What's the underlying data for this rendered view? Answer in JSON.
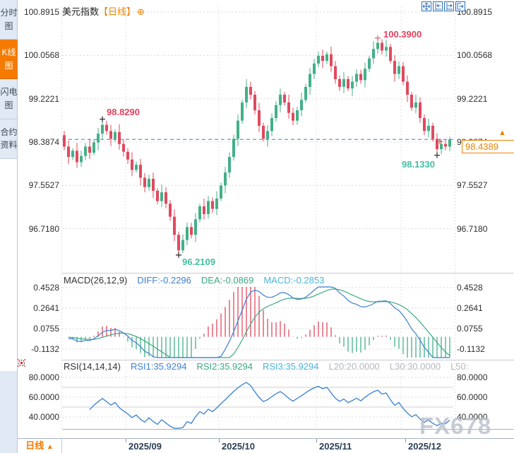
{
  "header": {
    "title": "美元指数",
    "period_tag": "【日线】",
    "add_icon": "⊕"
  },
  "sidebar": {
    "tabs": [
      {
        "label": "分时图",
        "selected": false
      },
      {
        "label": "K线图",
        "selected": true
      },
      {
        "label": "闪电图",
        "selected": false
      },
      {
        "label": "合约资料",
        "selected": false
      }
    ]
  },
  "toolbar": {
    "icons": [
      "crosshair",
      "compress-axis",
      "expand-axis",
      "pan-right"
    ]
  },
  "bottom": {
    "period_label": "日线",
    "period_arrow": "▲"
  },
  "watermark": "FX678",
  "colors": {
    "up_green": "#43b088",
    "down_red": "#e04a5e",
    "accent_orange": "#f57a00",
    "diff_blue": "#3f7fd0",
    "dea_green": "#3aa981",
    "macd_cyan": "#49b4dc",
    "dashed_blue": "#3a7bd5",
    "annotation_red": "#e0425e",
    "annotation_teal": "#44bfa2",
    "grid_gray": "#d9d9d9",
    "axis_text": "#2e2e2e",
    "watermark_gray": "#b9c0cc"
  },
  "chart_data": [
    {
      "type": "candlestick",
      "title": "美元指数 日线",
      "y_axis_labels": [
        "100.8915",
        "100.0568",
        "99.2221",
        "98.3874",
        "97.5527",
        "96.7180"
      ],
      "x_labels": [
        "2025/09",
        "2025/10",
        "2025/11",
        "2025/12"
      ],
      "month_start_indices": [
        15,
        37,
        60,
        80
      ],
      "annotations": {
        "swing_high": "98.8290",
        "peak_high": "100.3900",
        "swing_low": "96.2109",
        "recent_low": "98.1330",
        "current_price": "98.4389"
      },
      "ohlc": [
        [
          98.52,
          98.6,
          98.23,
          98.3
        ],
        [
          98.3,
          98.42,
          97.96,
          98.1
        ],
        [
          98.1,
          98.27,
          98.04,
          98.22
        ],
        [
          98.22,
          98.37,
          97.89,
          98.0
        ],
        [
          98.0,
          98.22,
          97.91,
          98.12
        ],
        [
          98.12,
          98.37,
          98.04,
          98.3
        ],
        [
          98.3,
          98.44,
          98.06,
          98.18
        ],
        [
          98.18,
          98.44,
          98.13,
          98.38
        ],
        [
          98.38,
          98.66,
          98.23,
          98.55
        ],
        [
          98.55,
          98.829,
          98.45,
          98.72
        ],
        [
          98.72,
          98.8,
          98.53,
          98.6
        ],
        [
          98.6,
          98.72,
          98.31,
          98.45
        ],
        [
          98.45,
          98.63,
          98.39,
          98.58
        ],
        [
          98.58,
          98.73,
          98.24,
          98.35
        ],
        [
          98.35,
          98.45,
          98.11,
          98.2
        ],
        [
          98.2,
          98.27,
          97.97,
          98.05
        ],
        [
          98.05,
          98.19,
          97.73,
          97.85
        ],
        [
          97.85,
          98.01,
          97.8,
          97.95
        ],
        [
          97.95,
          98.06,
          97.55,
          97.7
        ],
        [
          97.7,
          97.79,
          97.42,
          97.52
        ],
        [
          97.52,
          97.76,
          97.45,
          97.68
        ],
        [
          97.68,
          97.8,
          97.31,
          97.45
        ],
        [
          97.45,
          97.5,
          97.19,
          97.25
        ],
        [
          97.25,
          97.57,
          97.14,
          97.42
        ],
        [
          97.42,
          97.52,
          97.11,
          97.2
        ],
        [
          97.2,
          97.27,
          96.87,
          96.95
        ],
        [
          96.95,
          97.09,
          96.48,
          96.6
        ],
        [
          96.6,
          96.66,
          96.2109,
          96.3
        ],
        [
          96.3,
          96.61,
          96.25,
          96.5
        ],
        [
          96.5,
          96.84,
          96.4,
          96.75
        ],
        [
          96.75,
          96.83,
          96.53,
          96.6
        ],
        [
          96.6,
          97.02,
          96.46,
          96.9
        ],
        [
          96.9,
          97.2,
          96.84,
          97.15
        ],
        [
          97.15,
          97.3,
          96.89,
          97.0
        ],
        [
          97.0,
          97.35,
          96.91,
          97.25
        ],
        [
          97.25,
          97.32,
          97.02,
          97.1
        ],
        [
          97.1,
          97.44,
          96.98,
          97.3
        ],
        [
          97.3,
          97.61,
          97.25,
          97.55
        ],
        [
          97.55,
          97.91,
          97.4,
          97.8
        ],
        [
          97.8,
          98.19,
          97.7,
          98.1
        ],
        [
          98.1,
          98.53,
          98.03,
          98.45
        ],
        [
          98.45,
          98.92,
          98.31,
          98.8
        ],
        [
          98.8,
          99.2,
          98.74,
          99.15
        ],
        [
          99.15,
          99.6,
          99.04,
          99.45
        ],
        [
          99.45,
          99.55,
          99.21,
          99.3
        ],
        [
          99.3,
          99.37,
          98.92,
          99.0
        ],
        [
          99.0,
          99.14,
          98.58,
          98.7
        ],
        [
          98.7,
          98.76,
          98.4,
          98.45
        ],
        [
          98.45,
          98.71,
          98.3,
          98.6
        ],
        [
          98.6,
          98.94,
          98.5,
          98.85
        ],
        [
          98.85,
          99.18,
          98.78,
          99.1
        ],
        [
          99.1,
          99.42,
          98.96,
          99.3
        ],
        [
          99.3,
          99.35,
          99.09,
          99.15
        ],
        [
          99.15,
          99.3,
          98.84,
          98.95
        ],
        [
          98.95,
          99.05,
          98.71,
          98.8
        ],
        [
          98.8,
          99.07,
          98.72,
          99.0
        ],
        [
          99.0,
          99.34,
          98.88,
          99.2
        ],
        [
          99.2,
          99.51,
          99.15,
          99.45
        ],
        [
          99.45,
          99.81,
          99.3,
          99.7
        ],
        [
          99.7,
          99.99,
          99.6,
          99.9
        ],
        [
          99.9,
          100.13,
          99.83,
          100.05
        ],
        [
          100.05,
          100.17,
          99.81,
          99.95
        ],
        [
          99.95,
          100.13,
          99.89,
          100.08
        ],
        [
          100.08,
          100.23,
          99.74,
          99.85
        ],
        [
          99.85,
          99.95,
          99.51,
          99.6
        ],
        [
          99.6,
          99.67,
          99.37,
          99.45
        ],
        [
          99.45,
          99.74,
          99.33,
          99.6
        ],
        [
          99.6,
          99.66,
          99.37,
          99.42
        ],
        [
          99.42,
          99.66,
          99.27,
          99.55
        ],
        [
          99.55,
          99.79,
          99.45,
          99.7
        ],
        [
          99.7,
          99.78,
          99.51,
          99.58
        ],
        [
          99.58,
          99.92,
          99.44,
          99.8
        ],
        [
          99.8,
          100.05,
          99.74,
          100.0
        ],
        [
          100.0,
          100.33,
          99.89,
          100.18
        ],
        [
          100.18,
          100.39,
          100.09,
          100.3
        ],
        [
          100.3,
          100.37,
          100.07,
          100.15
        ],
        [
          100.15,
          100.36,
          100.03,
          100.22
        ],
        [
          100.22,
          100.28,
          99.9,
          99.95
        ],
        [
          99.95,
          100.06,
          99.55,
          99.7
        ],
        [
          99.7,
          99.94,
          99.6,
          99.85
        ],
        [
          99.85,
          99.93,
          99.48,
          99.55
        ],
        [
          99.55,
          99.67,
          99.16,
          99.3
        ],
        [
          99.3,
          99.35,
          98.99,
          99.05
        ],
        [
          99.05,
          99.3,
          98.94,
          99.15
        ],
        [
          99.15,
          99.25,
          98.76,
          98.85
        ],
        [
          98.85,
          98.92,
          98.52,
          98.6
        ],
        [
          98.6,
          98.84,
          98.48,
          98.7
        ],
        [
          98.7,
          98.76,
          98.4,
          98.45
        ],
        [
          98.45,
          98.56,
          98.133,
          98.25
        ],
        [
          98.25,
          98.44,
          98.15,
          98.35
        ],
        [
          98.35,
          98.43,
          98.23,
          98.3
        ],
        [
          98.3,
          98.49,
          98.21,
          98.4389
        ]
      ]
    },
    {
      "type": "macd",
      "title": "MACD(26,12,9)",
      "diff_label": "DIFF:-0.2296",
      "dea_label": "DEA:-0.0869",
      "macd_label": "MACD:-0.2853",
      "params": [
        26,
        12,
        9
      ],
      "y_axis_labels": [
        "0.4528",
        "0.2641",
        "0.0755",
        "-0.1132"
      ]
    },
    {
      "type": "rsi",
      "title": "RSI(14,14,14)",
      "rsi1_label": "RSI1:35.9294",
      "rsi2_label": "RSI2:35.9294",
      "rsi3_label": "RSI3:35.9294",
      "l20_label": "L20:20.0000",
      "l30_label": "L30:30.0000",
      "l50_label": "L50:",
      "params": [
        14,
        14,
        14
      ],
      "y_axis_labels": [
        "80.0000",
        "60.0000",
        "40.0000"
      ]
    }
  ]
}
